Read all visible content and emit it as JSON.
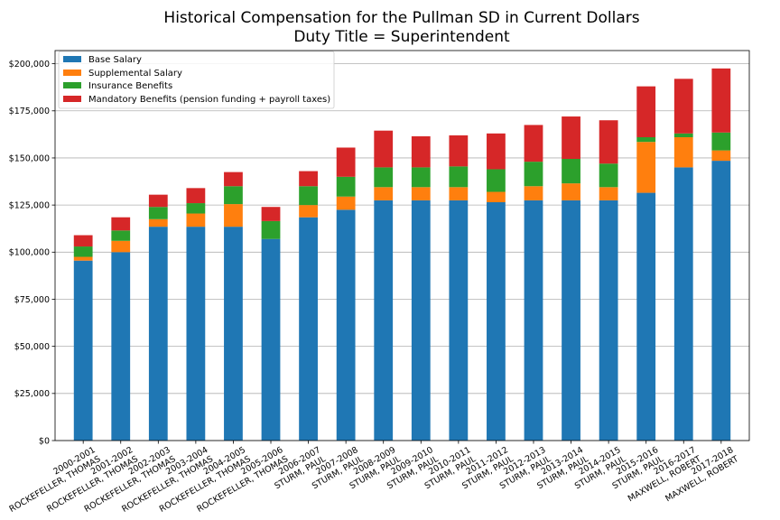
{
  "chart_data": {
    "type": "bar",
    "stacked": true,
    "title": "Historical Compensation for the Pullman SD in Current Dollars",
    "subtitle": "Duty Title = Superintendent",
    "xlabel": "",
    "ylabel": "",
    "ylim": [
      0,
      207000
    ],
    "yticks": [
      0,
      25000,
      50000,
      75000,
      100000,
      125000,
      150000,
      175000,
      200000
    ],
    "ytick_labels": [
      "$0",
      "$25,000",
      "$50,000",
      "$75,000",
      "$100,000",
      "$125,000",
      "$150,000",
      "$175,000",
      "$200,000"
    ],
    "grid": "horizontal",
    "legend_position": "top-left",
    "categories": [
      [
        "2000-2001",
        "ROCKEFELLER, THOMAS"
      ],
      [
        "2001-2002",
        "ROCKEFELLER, THOMAS"
      ],
      [
        "2002-2003",
        "ROCKEFELLER, THOMAS"
      ],
      [
        "2003-2004",
        "ROCKEFELLER, THOMAS"
      ],
      [
        "2004-2005",
        "ROCKEFELLER, THOMAS"
      ],
      [
        "2005-2006",
        "ROCKEFELLER, THOMAS"
      ],
      [
        "2006-2007",
        "STURM, PAUL"
      ],
      [
        "2007-2008",
        "STURM, PAUL"
      ],
      [
        "2008-2009",
        "STURM, PAUL"
      ],
      [
        "2009-2010",
        "STURM, PAUL"
      ],
      [
        "2010-2011",
        "STURM, PAUL"
      ],
      [
        "2011-2012",
        "STURM, PAUL"
      ],
      [
        "2012-2013",
        "STURM, PAUL"
      ],
      [
        "2013-2014",
        "STURM, PAUL"
      ],
      [
        "2014-2015",
        "STURM, PAUL"
      ],
      [
        "2015-2016",
        "STURM, PAUL"
      ],
      [
        "2016-2017",
        "MAXWELL, ROBERT"
      ],
      [
        "2017-2018",
        "MAXWELL, ROBERT"
      ]
    ],
    "series": [
      {
        "name": "Base Salary",
        "color": "#1f77b4",
        "values": [
          95500,
          100000,
          113500,
          113500,
          113500,
          107000,
          118500,
          122500,
          127500,
          127500,
          127500,
          126500,
          127500,
          127500,
          127500,
          131500,
          145000,
          148500
        ]
      },
      {
        "name": "Supplemental Salary",
        "color": "#ff7f0e",
        "values": [
          2000,
          6000,
          4000,
          7000,
          12000,
          0,
          6500,
          7000,
          7000,
          7000,
          7000,
          5500,
          7500,
          9000,
          7000,
          27000,
          16000,
          5500
        ]
      },
      {
        "name": "Insurance Benefits",
        "color": "#2ca02c",
        "values": [
          5500,
          5500,
          6500,
          5500,
          9500,
          9500,
          10000,
          10500,
          10500,
          10500,
          11000,
          12000,
          13000,
          13000,
          12500,
          2500,
          2000,
          9500
        ]
      },
      {
        "name": "Mandatory Benefits (pension funding + payroll taxes)",
        "color": "#d62728",
        "values": [
          6000,
          7000,
          6500,
          8000,
          7500,
          7500,
          8000,
          15500,
          19500,
          16500,
          16500,
          19000,
          19500,
          22500,
          23000,
          27000,
          29000,
          34000
        ]
      }
    ]
  }
}
